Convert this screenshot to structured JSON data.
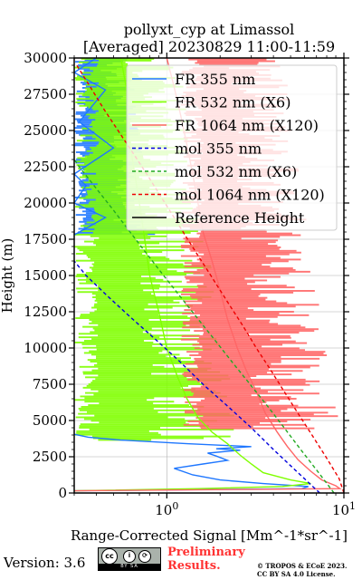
{
  "chart_data": {
    "type": "line",
    "title": "pollyxt_cyp at Limassol",
    "subtitle": "[Averaged] 20230829 11:00-11:59",
    "xlabel": "Range-Corrected Signal [Mm^-1*sr^-1]",
    "ylabel": "Height (m)",
    "x_scale": "log",
    "xlim": [
      0.3,
      10
    ],
    "ylim": [
      0,
      30000
    ],
    "x_ticks": [
      {
        "value": 1,
        "label": "10^0"
      },
      {
        "value": 10,
        "label": "10^1"
      }
    ],
    "y_ticks": [
      "0",
      "2500",
      "5000",
      "7500",
      "10000",
      "12500",
      "15000",
      "17500",
      "20000",
      "22500",
      "25000",
      "27500",
      "30000"
    ],
    "grid": true,
    "legend_position": "top-right",
    "series": [
      {
        "name": "FR 355 nm",
        "color": "#1f77ff",
        "style": "solid",
        "points": [
          [
            0.3,
            150
          ],
          [
            5.8,
            300
          ],
          [
            6.3,
            450
          ],
          [
            3.5,
            650
          ],
          [
            2.0,
            900
          ],
          [
            1.4,
            1250
          ],
          [
            1.1,
            1700
          ],
          [
            1.6,
            2000
          ],
          [
            2.2,
            2250
          ],
          [
            1.9,
            2550
          ],
          [
            1.7,
            2750
          ],
          [
            2.6,
            2950
          ],
          [
            1.9,
            3050
          ],
          [
            3.0,
            3200
          ],
          [
            1.3,
            3400
          ],
          [
            0.55,
            3650
          ],
          [
            0.36,
            3850
          ],
          [
            0.3,
            4050
          ],
          [
            0.3,
            17800
          ],
          [
            0.45,
            19000
          ],
          [
            0.3,
            20000
          ],
          [
            0.35,
            21200
          ],
          [
            0.3,
            22000
          ],
          [
            0.5,
            23800
          ],
          [
            0.32,
            25600
          ],
          [
            0.45,
            27800
          ],
          [
            0.3,
            29000
          ],
          [
            0.4,
            30000
          ]
        ]
      },
      {
        "name": "FR 532 nm (X6)",
        "color": "#7fff00",
        "style": "solid",
        "points": [
          [
            0.3,
            150
          ],
          [
            1.5,
            300
          ],
          [
            4.5,
            450
          ],
          [
            6.5,
            650
          ],
          [
            5.0,
            900
          ],
          [
            3.5,
            1400
          ],
          [
            3.0,
            2000
          ],
          [
            2.6,
            2600
          ],
          [
            2.2,
            3400
          ],
          [
            1.8,
            4200
          ],
          [
            1.5,
            5200
          ],
          [
            1.3,
            6500
          ],
          [
            1.15,
            8000
          ],
          [
            1.0,
            10000
          ],
          [
            0.9,
            12500
          ],
          [
            0.8,
            15000
          ],
          [
            0.75,
            17500
          ],
          [
            0.7,
            20000
          ],
          [
            0.65,
            22500
          ],
          [
            0.6,
            25000
          ],
          [
            0.6,
            27500
          ],
          [
            0.55,
            30000
          ]
        ]
      },
      {
        "name": "FR 1064 nm (X120)",
        "color": "#ff6666",
        "style": "solid",
        "points": [
          [
            0.3,
            150
          ],
          [
            9.5,
            300
          ],
          [
            9.0,
            500
          ],
          [
            7.5,
            900
          ],
          [
            6.5,
            1500
          ],
          [
            5.5,
            2300
          ],
          [
            4.8,
            3200
          ],
          [
            4.2,
            4200
          ],
          [
            3.6,
            5500
          ],
          [
            3.2,
            7000
          ],
          [
            2.8,
            8500
          ],
          [
            2.5,
            10000
          ],
          [
            2.2,
            12000
          ],
          [
            2.0,
            14000
          ],
          [
            1.8,
            16000
          ],
          [
            1.6,
            18000
          ],
          [
            1.5,
            20000
          ],
          [
            1.4,
            22000
          ],
          [
            1.3,
            24000
          ],
          [
            1.2,
            26000
          ],
          [
            1.1,
            28000
          ],
          [
            1.0,
            30000
          ]
        ]
      },
      {
        "name": "mol 355 nm",
        "color": "#0000dd",
        "style": "dashed",
        "points": [
          [
            7.3,
            0
          ],
          [
            5.4,
            1500
          ],
          [
            4.0,
            3000
          ],
          [
            3.0,
            4500
          ],
          [
            2.2,
            6000
          ],
          [
            1.6,
            7500
          ],
          [
            1.2,
            9000
          ],
          [
            0.88,
            10500
          ],
          [
            0.64,
            12000
          ],
          [
            0.47,
            13500
          ],
          [
            0.35,
            15000
          ],
          [
            0.3,
            16000
          ]
        ]
      },
      {
        "name": "mol 532 nm (X6)",
        "color": "#22aa22",
        "style": "dashed",
        "points": [
          [
            8.8,
            0
          ],
          [
            7.1,
            1500
          ],
          [
            5.7,
            3000
          ],
          [
            4.6,
            4500
          ],
          [
            3.7,
            6000
          ],
          [
            2.95,
            7500
          ],
          [
            2.35,
            9000
          ],
          [
            1.88,
            10500
          ],
          [
            1.5,
            12000
          ],
          [
            1.2,
            13500
          ],
          [
            0.96,
            15000
          ],
          [
            0.77,
            16500
          ],
          [
            0.62,
            18000
          ],
          [
            0.5,
            19500
          ],
          [
            0.4,
            21000
          ],
          [
            0.32,
            22500
          ],
          [
            0.3,
            23000
          ]
        ]
      },
      {
        "name": "mol 1064 nm (X120)",
        "color": "#ee0000",
        "style": "dashed",
        "points": [
          [
            10,
            0
          ],
          [
            9.4,
            1000
          ],
          [
            7.9,
            2500
          ],
          [
            6.6,
            4000
          ],
          [
            5.5,
            5500
          ],
          [
            4.6,
            7000
          ],
          [
            3.85,
            8500
          ],
          [
            3.2,
            10000
          ],
          [
            2.7,
            11500
          ],
          [
            2.25,
            13000
          ],
          [
            1.88,
            14500
          ],
          [
            1.57,
            16000
          ],
          [
            1.31,
            17500
          ],
          [
            1.1,
            19000
          ],
          [
            0.92,
            20500
          ],
          [
            0.77,
            22000
          ],
          [
            0.64,
            23500
          ],
          [
            0.53,
            25000
          ],
          [
            0.44,
            26500
          ],
          [
            0.37,
            28000
          ],
          [
            0.31,
            29500
          ]
        ]
      },
      {
        "name": "Reference Height",
        "color": "#000000",
        "style": "solid",
        "points": []
      }
    ]
  },
  "footer": {
    "version": "Version: 3.6",
    "license_badge": "BY   SA",
    "cc_label": "cc",
    "preliminary_line1": "Preliminary",
    "preliminary_line2": "Results.",
    "copyright_line1": "© TROPOS & ECoE 2023.",
    "copyright_line2": "CC BY SA 4.0 License."
  }
}
